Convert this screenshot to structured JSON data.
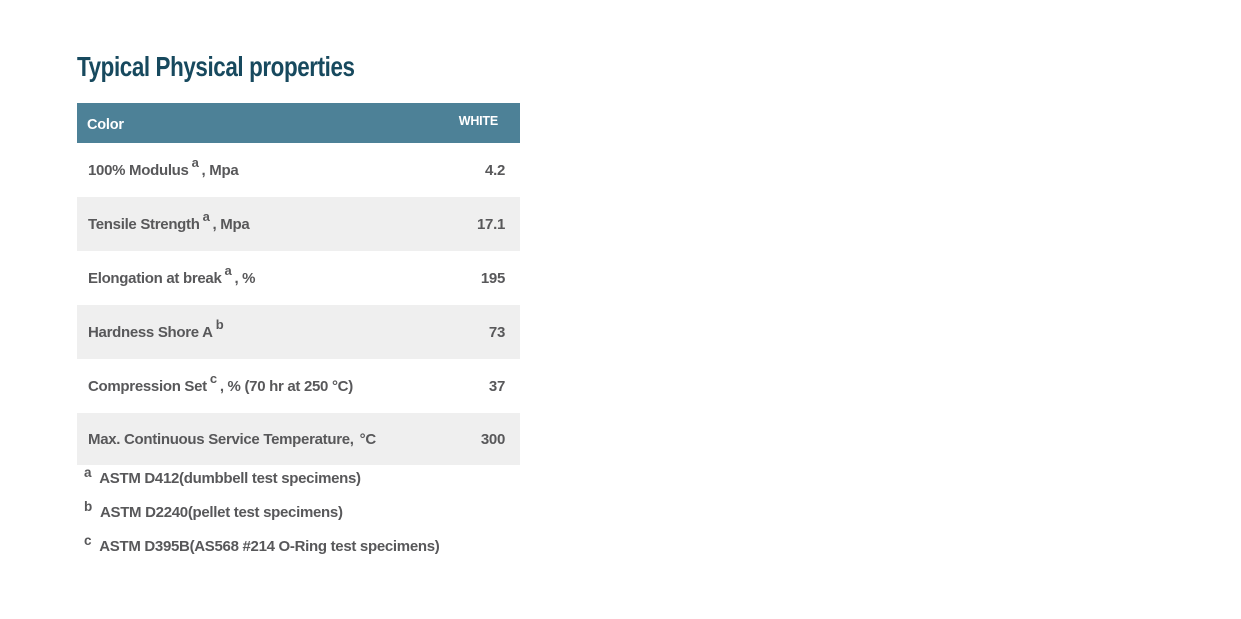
{
  "page": {
    "title": "Typical Physical properties"
  },
  "table": {
    "header": {
      "label": "Color",
      "value": "WHITE"
    },
    "rows": [
      {
        "label_pre": "100% Modulus",
        "sup": "a",
        "label_post": ", Mpa",
        "value": "4.2"
      },
      {
        "label_pre": "Tensile Strength",
        "sup": "a",
        "label_post": ", Mpa",
        "value": "17.1"
      },
      {
        "label_pre": "Elongation at break",
        "sup": "a",
        "label_post": ", %",
        "value": "195"
      },
      {
        "label_pre": "Hardness Shore A",
        "sup": "b",
        "label_post": "",
        "value": "73"
      },
      {
        "label_pre": "Compression Set",
        "sup": "c",
        "label_post": ", % (70 hr at 250 °C)",
        "value": "37"
      },
      {
        "label_pre": "Max. Continuous Service Temperature,",
        "sup": "",
        "label_post": "°C",
        "value": "300"
      }
    ]
  },
  "footnotes": [
    {
      "sup": "a",
      "text": "ASTM D412(dumbbell test specimens)"
    },
    {
      "sup": "b",
      "text": "ASTM D2240(pellet test specimens)"
    },
    {
      "sup": "c",
      "text": "ASTM D395B(AS568 #214 O-Ring test specimens)"
    }
  ],
  "colors": {
    "header_bg": "#4d8197",
    "row_alt_bg": "#efefef",
    "text": "#58585a",
    "title": "#17495e",
    "header_text": "#ffffff"
  }
}
